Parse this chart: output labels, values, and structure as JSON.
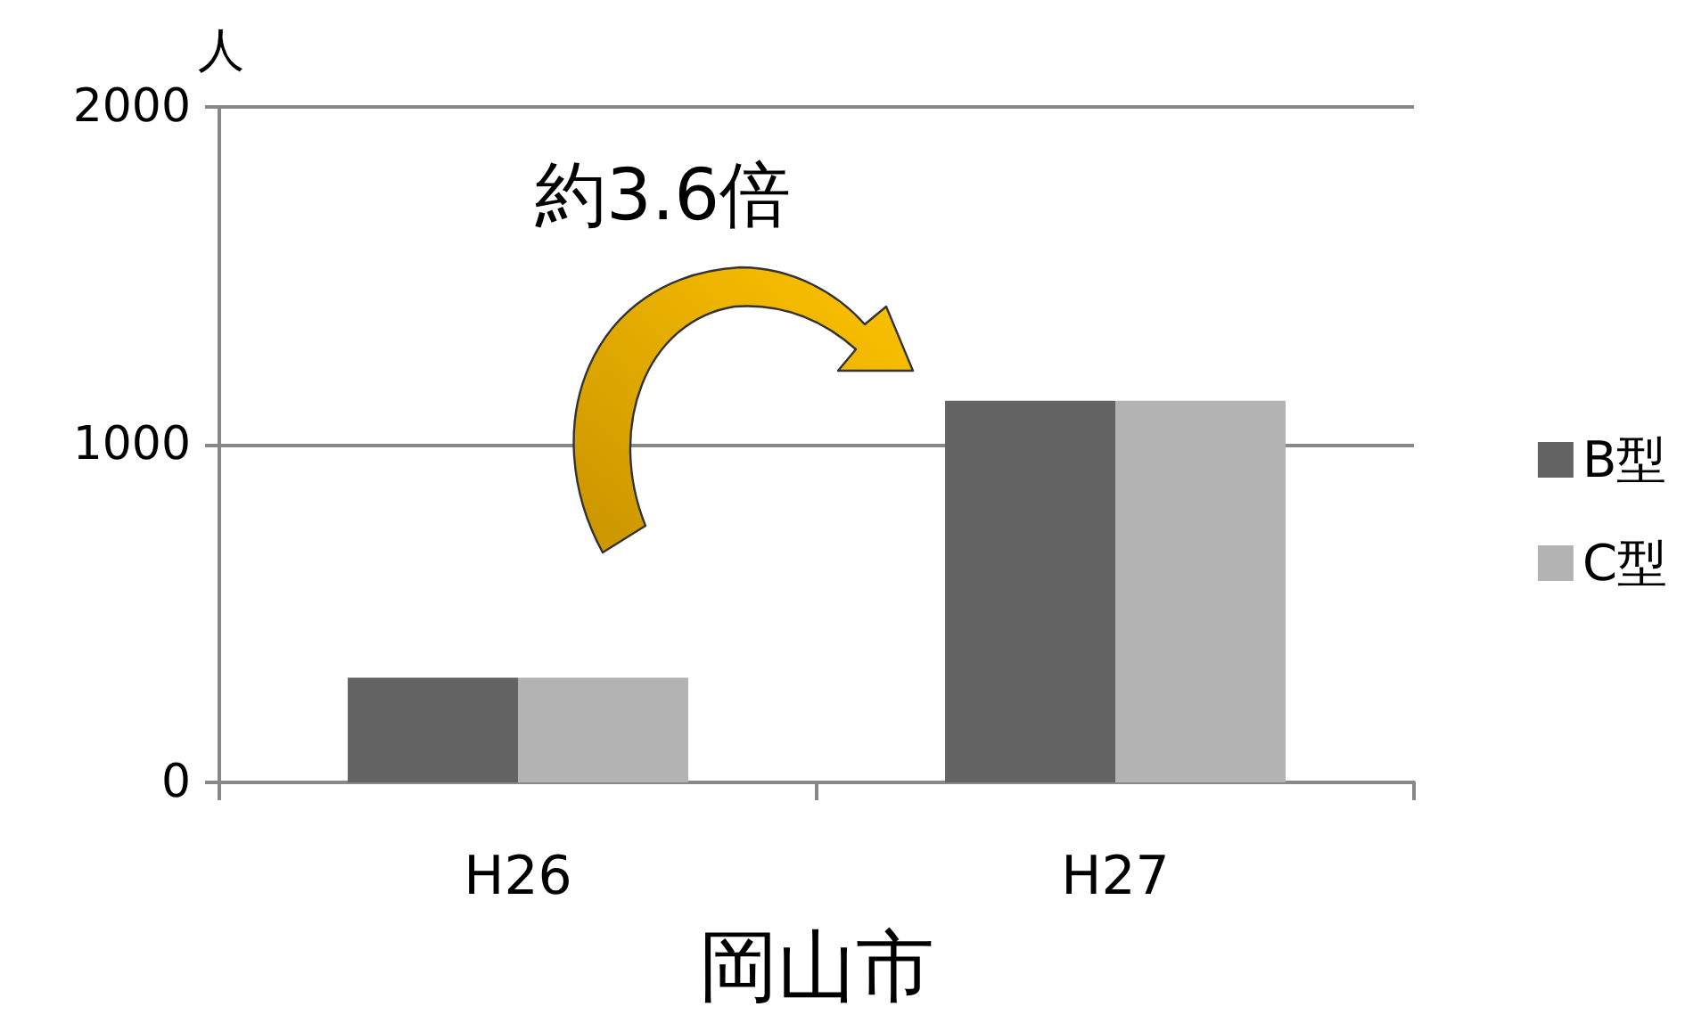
{
  "chart_data": {
    "type": "bar",
    "xlabel": "岡山市",
    "ylabel": "人",
    "categories": [
      "H26",
      "H27"
    ],
    "series": [
      {
        "name": "B型",
        "color": "#636363",
        "values": [
          310,
          1130
        ]
      },
      {
        "name": "C型",
        "color": "#b3b3b3",
        "values": [
          310,
          1130
        ]
      }
    ],
    "ylim": [
      0,
      2000
    ],
    "yticks": [
      0,
      1000,
      2000
    ],
    "grid": "y",
    "legend": "right",
    "annotations": [
      "約3.6倍"
    ]
  }
}
